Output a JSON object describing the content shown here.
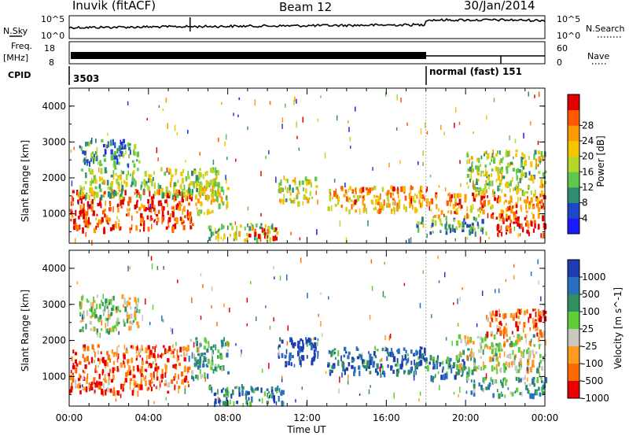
{
  "header": {
    "station": "Inuvik (fitACF)",
    "beam": "Beam 12",
    "date": "30/Jan/2014"
  },
  "labels": {
    "nsky": "N.Sky",
    "nsearch": "N.Search",
    "freq": "Freq.",
    "mhz": "[MHz]",
    "nave": "Nave",
    "cpid": "CPID",
    "cpid_first": "3503",
    "cpid_second": "normal (fast) 151",
    "time_axis": "Time UT"
  },
  "noise_panel": {
    "left_ticks": [
      "10^5",
      "10^0"
    ],
    "right_ticks": [
      "10^5",
      "10^0"
    ]
  },
  "freq_panel": {
    "left_ticks": [
      "18",
      "8"
    ],
    "right_ticks": [
      "60",
      "0"
    ]
  },
  "time_ticks": [
    "00:00",
    "04:00",
    "08:00",
    "12:00",
    "16:00",
    "20:00",
    "00:00"
  ],
  "chart_data": [
    {
      "type": "heatmap",
      "panel": "power",
      "x_range_hours": [
        0,
        24
      ],
      "ylabel": "Slant Range [km]",
      "yticks": [
        "1000",
        "2000",
        "3000",
        "4000"
      ],
      "ylim": [
        180,
        4500
      ],
      "colorbar": {
        "label": "Power [dB]",
        "ticks": [
          "4",
          "8",
          "12",
          "16",
          "20",
          "24",
          "28"
        ],
        "colors": [
          "#1a1aff",
          "#1e46c8",
          "#2f8c73",
          "#5fc84a",
          "#b5d62a",
          "#f5c500",
          "#ff9a00",
          "#ff5a00",
          "#e00000"
        ]
      },
      "echo_regions": [
        {
          "t0": 0.0,
          "t1": 6.3,
          "r0": 600,
          "r1": 1700,
          "level": 0.9
        },
        {
          "t0": 0.5,
          "t1": 7.5,
          "r0": 1500,
          "r1": 2300,
          "level": 0.45
        },
        {
          "t0": 6.3,
          "t1": 8.0,
          "r0": 1000,
          "r1": 2000,
          "level": 0.55
        },
        {
          "t0": 0.5,
          "t1": 3.5,
          "r0": 2400,
          "r1": 3100,
          "level": 0.3
        },
        {
          "t0": 7.0,
          "t1": 10.5,
          "r0": 300,
          "r1": 750,
          "level": 0.45
        },
        {
          "t0": 9.0,
          "t1": 10.5,
          "r0": 350,
          "r1": 650,
          "level": 0.9
        },
        {
          "t0": 10.5,
          "t1": 12.5,
          "r0": 1350,
          "r1": 2050,
          "level": 0.55
        },
        {
          "t0": 13.0,
          "t1": 18.0,
          "r0": 1100,
          "r1": 1800,
          "level": 0.7
        },
        {
          "t0": 18.0,
          "t1": 24.0,
          "r0": 950,
          "r1": 1600,
          "level": 0.75
        },
        {
          "t0": 20.0,
          "t1": 24.0,
          "r0": 1600,
          "r1": 2800,
          "level": 0.5
        },
        {
          "t0": 21.5,
          "t1": 24.0,
          "r0": 450,
          "r1": 950,
          "level": 0.95
        },
        {
          "t0": 17.5,
          "t1": 21.0,
          "r0": 500,
          "r1": 950,
          "level": 0.35
        }
      ]
    },
    {
      "type": "heatmap",
      "panel": "velocity",
      "x_range_hours": [
        0,
        24
      ],
      "ylabel": "Slant Range [km]",
      "yticks": [
        "1000",
        "2000",
        "3000",
        "4000"
      ],
      "ylim": [
        180,
        4500
      ],
      "colorbar": {
        "label": "Velocity [m s^-1]",
        "ticks": [
          "1000",
          "500",
          "100",
          "25",
          "-25",
          "-100",
          "-500",
          "-1000"
        ],
        "colors": [
          "#1e3cb4",
          "#2a6fbf",
          "#2f8f5f",
          "#5fcc3a",
          "#c8c8c0",
          "#ff9a20",
          "#ff6a00",
          "#e80000"
        ]
      },
      "echo_regions": [
        {
          "t0": 0.0,
          "t1": 6.0,
          "r0": 600,
          "r1": 1900,
          "level": 0.82
        },
        {
          "t0": 6.0,
          "t1": 8.0,
          "r0": 1000,
          "r1": 2100,
          "level": 0.35
        },
        {
          "t0": 0.5,
          "t1": 3.5,
          "r0": 2300,
          "r1": 3300,
          "level": 0.5
        },
        {
          "t0": 7.0,
          "t1": 10.8,
          "r0": 300,
          "r1": 800,
          "level": 0.25
        },
        {
          "t0": 10.5,
          "t1": 12.6,
          "r0": 1300,
          "r1": 2100,
          "level": 0.05
        },
        {
          "t0": 13.0,
          "t1": 18.0,
          "r0": 1100,
          "r1": 1850,
          "level": 0.2
        },
        {
          "t0": 18.0,
          "t1": 20.5,
          "r0": 1000,
          "r1": 1600,
          "level": 0.2
        },
        {
          "t0": 19.5,
          "t1": 24.0,
          "r0": 1200,
          "r1": 2200,
          "level": 0.55
        },
        {
          "t0": 21.0,
          "t1": 24.0,
          "r0": 2200,
          "r1": 2900,
          "level": 0.82
        },
        {
          "t0": 20.0,
          "t1": 24.0,
          "r0": 500,
          "r1": 1000,
          "level": 0.35
        }
      ]
    }
  ]
}
